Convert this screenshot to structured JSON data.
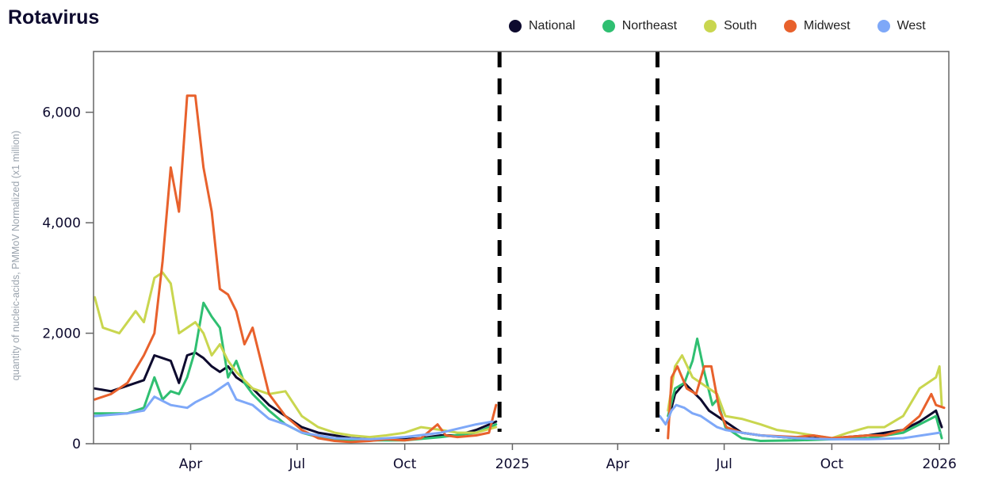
{
  "chart_data": {
    "type": "line",
    "title": "Rotavirus",
    "ylabel": "quantity of nucleic-acids, PMMoV Normalized (x1 million)",
    "xlabel": "",
    "xlim": [
      "2024-01-09",
      "2026-01-09"
    ],
    "ylim": [
      0,
      7100
    ],
    "yticks": [
      {
        "value": 0,
        "label": "0"
      },
      {
        "value": 2000,
        "label": "2,000"
      },
      {
        "value": 4000,
        "label": "4,000"
      },
      {
        "value": 6000,
        "label": "6,000"
      }
    ],
    "xticks": [
      {
        "date": "2024-04-01",
        "label": "Apr"
      },
      {
        "date": "2024-07-01",
        "label": "Jul"
      },
      {
        "date": "2024-10-01",
        "label": "Oct"
      },
      {
        "date": "2025-01-01",
        "label": "2025"
      },
      {
        "date": "2025-04-01",
        "label": "Apr"
      },
      {
        "date": "2025-07-01",
        "label": "Jul"
      },
      {
        "date": "2025-10-01",
        "label": "Oct"
      },
      {
        "date": "2026-01-01",
        "label": "2026"
      }
    ],
    "vlines": [
      "2024-12-21",
      "2025-05-05"
    ],
    "grid": false,
    "legend_position": "top-right",
    "series": [
      {
        "name": "National",
        "color": "#0d0a2e",
        "segments": [
          [
            [
              "2024-01-10",
              1000
            ],
            [
              "2024-01-24",
              950
            ],
            [
              "2024-02-07",
              1050
            ],
            [
              "2024-02-21",
              1150
            ],
            [
              "2024-03-01",
              1600
            ],
            [
              "2024-03-08",
              1550
            ],
            [
              "2024-03-15",
              1500
            ],
            [
              "2024-03-22",
              1100
            ],
            [
              "2024-03-29",
              1600
            ],
            [
              "2024-04-05",
              1650
            ],
            [
              "2024-04-12",
              1550
            ],
            [
              "2024-04-19",
              1400
            ],
            [
              "2024-04-26",
              1300
            ],
            [
              "2024-05-03",
              1400
            ],
            [
              "2024-05-10",
              1200
            ],
            [
              "2024-05-24",
              1000
            ],
            [
              "2024-06-07",
              700
            ],
            [
              "2024-06-21",
              500
            ],
            [
              "2024-07-05",
              300
            ],
            [
              "2024-07-19",
              200
            ],
            [
              "2024-08-02",
              150
            ],
            [
              "2024-08-16",
              100
            ],
            [
              "2024-09-01",
              80
            ],
            [
              "2024-09-15",
              70
            ],
            [
              "2024-10-01",
              80
            ],
            [
              "2024-10-15",
              100
            ],
            [
              "2024-11-01",
              150
            ],
            [
              "2024-11-15",
              150
            ],
            [
              "2024-12-01",
              250
            ],
            [
              "2024-12-18",
              400
            ]
          ],
          [
            [
              "2025-05-14",
              400
            ],
            [
              "2025-05-20",
              900
            ],
            [
              "2025-05-28",
              1100
            ],
            [
              "2025-06-04",
              950
            ],
            [
              "2025-06-11",
              800
            ],
            [
              "2025-06-18",
              600
            ],
            [
              "2025-06-25",
              500
            ],
            [
              "2025-07-02",
              400
            ],
            [
              "2025-07-16",
              200
            ],
            [
              "2025-08-01",
              150
            ],
            [
              "2025-09-01",
              100
            ],
            [
              "2025-10-01",
              100
            ],
            [
              "2025-11-01",
              150
            ],
            [
              "2025-12-01",
              250
            ],
            [
              "2025-12-15",
              400
            ],
            [
              "2025-12-29",
              600
            ],
            [
              "2026-01-03",
              300
            ]
          ]
        ]
      },
      {
        "name": "Northeast",
        "color": "#2fbf71",
        "segments": [
          [
            [
              "2024-01-10",
              550
            ],
            [
              "2024-02-07",
              550
            ],
            [
              "2024-02-21",
              650
            ],
            [
              "2024-03-01",
              1200
            ],
            [
              "2024-03-08",
              800
            ],
            [
              "2024-03-15",
              950
            ],
            [
              "2024-03-22",
              900
            ],
            [
              "2024-03-29",
              1200
            ],
            [
              "2024-04-05",
              1700
            ],
            [
              "2024-04-12",
              2550
            ],
            [
              "2024-04-19",
              2300
            ],
            [
              "2024-04-26",
              2100
            ],
            [
              "2024-05-03",
              1200
            ],
            [
              "2024-05-10",
              1500
            ],
            [
              "2024-05-17",
              1100
            ],
            [
              "2024-05-24",
              900
            ],
            [
              "2024-06-07",
              600
            ],
            [
              "2024-06-21",
              350
            ],
            [
              "2024-07-05",
              200
            ],
            [
              "2024-07-19",
              120
            ],
            [
              "2024-08-02",
              80
            ],
            [
              "2024-09-01",
              60
            ],
            [
              "2024-10-01",
              60
            ],
            [
              "2024-11-01",
              120
            ],
            [
              "2024-12-01",
              200
            ],
            [
              "2024-12-18",
              350
            ]
          ],
          [
            [
              "2025-05-14",
              500
            ],
            [
              "2025-05-20",
              1000
            ],
            [
              "2025-05-28",
              1100
            ],
            [
              "2025-06-04",
              1500
            ],
            [
              "2025-06-08",
              1900
            ],
            [
              "2025-06-14",
              1300
            ],
            [
              "2025-06-21",
              700
            ],
            [
              "2025-06-25",
              800
            ],
            [
              "2025-07-02",
              300
            ],
            [
              "2025-07-16",
              100
            ],
            [
              "2025-08-01",
              50
            ],
            [
              "2025-09-01",
              60
            ],
            [
              "2025-10-01",
              80
            ],
            [
              "2025-11-01",
              100
            ],
            [
              "2025-12-01",
              200
            ],
            [
              "2025-12-29",
              500
            ],
            [
              "2026-01-03",
              100
            ]
          ]
        ]
      },
      {
        "name": "South",
        "color": "#c9d64f",
        "segments": [
          [
            [
              "2024-01-10",
              2650
            ],
            [
              "2024-01-17",
              2100
            ],
            [
              "2024-01-31",
              2000
            ],
            [
              "2024-02-14",
              2400
            ],
            [
              "2024-02-21",
              2200
            ],
            [
              "2024-03-01",
              3000
            ],
            [
              "2024-03-08",
              3100
            ],
            [
              "2024-03-15",
              2900
            ],
            [
              "2024-03-22",
              2000
            ],
            [
              "2024-03-29",
              2100
            ],
            [
              "2024-04-05",
              2200
            ],
            [
              "2024-04-12",
              2000
            ],
            [
              "2024-04-19",
              1600
            ],
            [
              "2024-04-26",
              1800
            ],
            [
              "2024-05-03",
              1500
            ],
            [
              "2024-05-10",
              1300
            ],
            [
              "2024-05-24",
              1000
            ],
            [
              "2024-06-07",
              900
            ],
            [
              "2024-06-21",
              950
            ],
            [
              "2024-07-05",
              500
            ],
            [
              "2024-07-19",
              300
            ],
            [
              "2024-08-02",
              200
            ],
            [
              "2024-08-16",
              150
            ],
            [
              "2024-09-01",
              120
            ],
            [
              "2024-09-15",
              150
            ],
            [
              "2024-10-01",
              200
            ],
            [
              "2024-10-15",
              300
            ],
            [
              "2024-11-01",
              250
            ],
            [
              "2024-11-15",
              200
            ],
            [
              "2024-12-01",
              200
            ],
            [
              "2024-12-18",
              300
            ]
          ],
          [
            [
              "2025-05-14",
              600
            ],
            [
              "2025-05-20",
              1400
            ],
            [
              "2025-05-26",
              1600
            ],
            [
              "2025-06-04",
              1200
            ],
            [
              "2025-06-11",
              1100
            ],
            [
              "2025-06-18",
              1000
            ],
            [
              "2025-06-25",
              900
            ],
            [
              "2025-07-02",
              500
            ],
            [
              "2025-07-16",
              450
            ],
            [
              "2025-08-01",
              350
            ],
            [
              "2025-08-15",
              250
            ],
            [
              "2025-09-01",
              200
            ],
            [
              "2025-09-15",
              150
            ],
            [
              "2025-10-01",
              100
            ],
            [
              "2025-10-15",
              200
            ],
            [
              "2025-11-01",
              300
            ],
            [
              "2025-11-15",
              300
            ],
            [
              "2025-12-01",
              500
            ],
            [
              "2025-12-15",
              1000
            ],
            [
              "2025-12-29",
              1200
            ],
            [
              "2026-01-01",
              1400
            ],
            [
              "2026-01-03",
              700
            ]
          ]
        ]
      },
      {
        "name": "Midwest",
        "color": "#e8612c",
        "segments": [
          [
            [
              "2024-01-10",
              800
            ],
            [
              "2024-01-24",
              900
            ],
            [
              "2024-02-07",
              1100
            ],
            [
              "2024-02-21",
              1600
            ],
            [
              "2024-03-01",
              2000
            ],
            [
              "2024-03-08",
              3300
            ],
            [
              "2024-03-15",
              5000
            ],
            [
              "2024-03-22",
              4200
            ],
            [
              "2024-03-29",
              6300
            ],
            [
              "2024-04-05",
              6300
            ],
            [
              "2024-04-12",
              5000
            ],
            [
              "2024-04-19",
              4200
            ],
            [
              "2024-04-26",
              2800
            ],
            [
              "2024-05-03",
              2700
            ],
            [
              "2024-05-10",
              2400
            ],
            [
              "2024-05-17",
              1800
            ],
            [
              "2024-05-24",
              2100
            ],
            [
              "2024-05-31",
              1500
            ],
            [
              "2024-06-07",
              900
            ],
            [
              "2024-06-21",
              500
            ],
            [
              "2024-07-05",
              250
            ],
            [
              "2024-07-19",
              100
            ],
            [
              "2024-08-02",
              50
            ],
            [
              "2024-08-16",
              30
            ],
            [
              "2024-09-01",
              50
            ],
            [
              "2024-09-15",
              80
            ],
            [
              "2024-10-01",
              60
            ],
            [
              "2024-10-15",
              100
            ],
            [
              "2024-10-29",
              350
            ],
            [
              "2024-11-05",
              150
            ],
            [
              "2024-11-15",
              120
            ],
            [
              "2024-12-01",
              150
            ],
            [
              "2024-12-12",
              200
            ],
            [
              "2024-12-18",
              700
            ]
          ],
          [
            [
              "2025-05-14",
              100
            ],
            [
              "2025-05-17",
              1200
            ],
            [
              "2025-05-22",
              1400
            ],
            [
              "2025-05-30",
              1000
            ],
            [
              "2025-06-07",
              900
            ],
            [
              "2025-06-14",
              1400
            ],
            [
              "2025-06-20",
              1400
            ],
            [
              "2025-06-27",
              600
            ],
            [
              "2025-07-03",
              300
            ],
            [
              "2025-07-16",
              200
            ],
            [
              "2025-08-01",
              150
            ],
            [
              "2025-09-01",
              120
            ],
            [
              "2025-09-15",
              150
            ],
            [
              "2025-10-01",
              100
            ],
            [
              "2025-11-01",
              150
            ],
            [
              "2025-11-15",
              150
            ],
            [
              "2025-12-01",
              250
            ],
            [
              "2025-12-15",
              500
            ],
            [
              "2025-12-25",
              900
            ],
            [
              "2025-12-29",
              700
            ],
            [
              "2026-01-05",
              650
            ]
          ]
        ]
      },
      {
        "name": "West",
        "color": "#7ea8f8",
        "segments": [
          [
            [
              "2024-01-10",
              500
            ],
            [
              "2024-02-07",
              550
            ],
            [
              "2024-02-21",
              600
            ],
            [
              "2024-03-01",
              850
            ],
            [
              "2024-03-15",
              700
            ],
            [
              "2024-03-29",
              650
            ],
            [
              "2024-04-05",
              750
            ],
            [
              "2024-04-19",
              900
            ],
            [
              "2024-04-26",
              1000
            ],
            [
              "2024-05-03",
              1100
            ],
            [
              "2024-05-10",
              800
            ],
            [
              "2024-05-24",
              700
            ],
            [
              "2024-06-07",
              450
            ],
            [
              "2024-06-21",
              350
            ],
            [
              "2024-07-05",
              200
            ],
            [
              "2024-07-19",
              150
            ],
            [
              "2024-08-02",
              100
            ],
            [
              "2024-09-01",
              80
            ],
            [
              "2024-10-01",
              120
            ],
            [
              "2024-11-01",
              200
            ],
            [
              "2024-12-01",
              350
            ],
            [
              "2024-12-15",
              400
            ]
          ],
          [
            [
              "2025-05-07",
              500
            ],
            [
              "2025-05-12",
              350
            ],
            [
              "2025-05-17",
              600
            ],
            [
              "2025-05-21",
              700
            ],
            [
              "2025-05-28",
              650
            ],
            [
              "2025-06-04",
              550
            ],
            [
              "2025-06-11",
              500
            ],
            [
              "2025-06-18",
              400
            ],
            [
              "2025-06-25",
              300
            ],
            [
              "2025-07-02",
              250
            ],
            [
              "2025-07-16",
              200
            ],
            [
              "2025-08-01",
              150
            ],
            [
              "2025-09-01",
              100
            ],
            [
              "2025-10-01",
              80
            ],
            [
              "2025-11-01",
              80
            ],
            [
              "2025-12-01",
              100
            ],
            [
              "2026-01-01",
              200
            ]
          ]
        ]
      }
    ]
  }
}
